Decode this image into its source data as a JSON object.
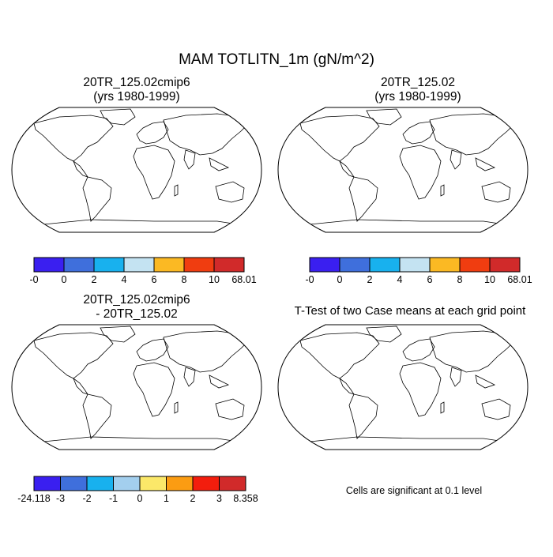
{
  "title": "MAM TOTLITN_1m (gN/m^2)",
  "panels": {
    "top_left": {
      "line1": "20TR_125.02cmip6",
      "line2": "(yrs 1980-1999)"
    },
    "top_right": {
      "line1": "20TR_125.02",
      "line2": "(yrs 1980-1999)"
    },
    "bottom_left": {
      "line1": "20TR_125.02cmip6",
      "line2": "- 20TR_125.02"
    },
    "bottom_right": {
      "line1": "T-Test of two Case means at each grid point"
    }
  },
  "significance_note": "Cells are significant at 0.1 level",
  "chart_data": [
    {
      "type": "heatmap",
      "name": "20TR_125.02cmip6 (yrs 1980-1999)",
      "colorbar": {
        "labels": [
          "-0",
          "0",
          "2",
          "4",
          "6",
          "8",
          "10",
          "68.01"
        ],
        "colors": [
          "#3a1ff0",
          "#3f6fdc",
          "#18b1ee",
          "#c4e3f2",
          "#fbb923",
          "#f03d10",
          "#d12a2a"
        ]
      }
    },
    {
      "type": "heatmap",
      "name": "20TR_125.02 (yrs 1980-1999)",
      "colorbar": {
        "labels": [
          "-0",
          "0",
          "2",
          "4",
          "6",
          "8",
          "10",
          "68.01"
        ],
        "colors": [
          "#3a1ff0",
          "#3f6fdc",
          "#18b1ee",
          "#c4e3f2",
          "#fbb923",
          "#f03d10",
          "#d12a2a"
        ]
      }
    },
    {
      "type": "heatmap",
      "name": "20TR_125.02cmip6 - 20TR_125.02",
      "colorbar": {
        "labels": [
          "-24.118",
          "-3",
          "-2",
          "-1",
          "0",
          "1",
          "2",
          "3",
          "8.358"
        ],
        "colors": [
          "#3a1ff0",
          "#3f6fdc",
          "#18b1ee",
          "#a3cfee",
          "#fbe869",
          "#fb9c12",
          "#f31d0d",
          "#d12a2a"
        ]
      }
    },
    {
      "type": "heatmap",
      "name": "T-Test of two Case means at each grid point",
      "significance_color": "#ee0000",
      "significance_level": 0.1
    }
  ]
}
